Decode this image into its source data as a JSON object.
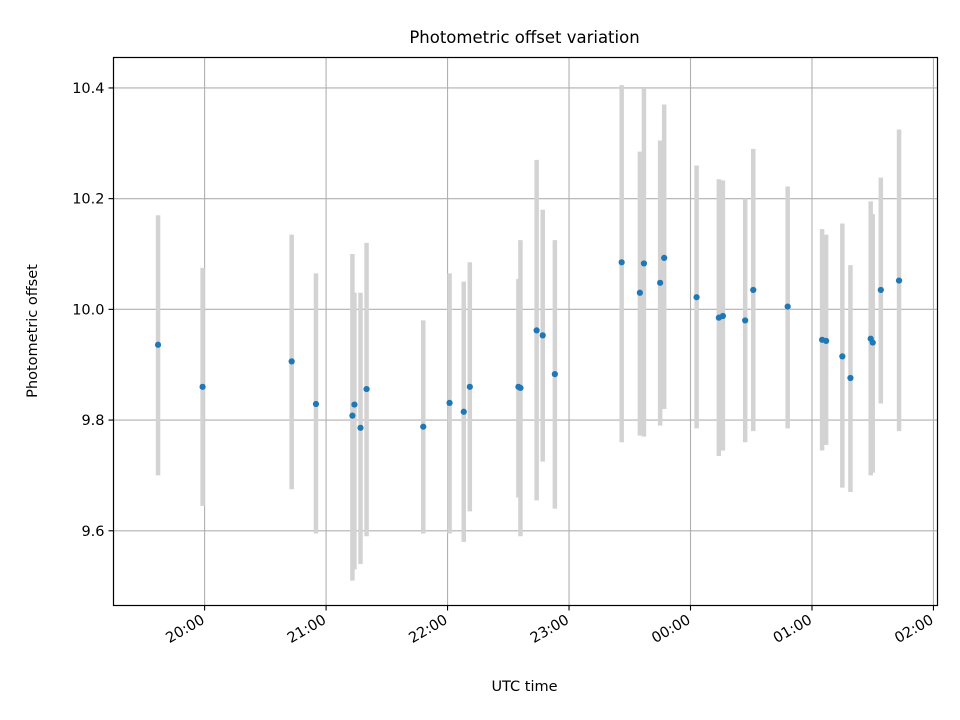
{
  "chart_data": {
    "type": "scatter",
    "title": "Photometric offset variation",
    "xlabel": "UTC time",
    "ylabel": "Photometric offset",
    "x_ticks": [
      "20:00",
      "21:00",
      "22:00",
      "23:00",
      "00:00",
      "01:00",
      "02:00"
    ],
    "y_ticks": [
      "9.6",
      "9.8",
      "10.0",
      "10.2",
      "10.4"
    ],
    "xlim": [
      "19:15",
      "02:02"
    ],
    "ylim": [
      9.465,
      10.455
    ],
    "grid": true,
    "x_tick_rotation_deg": 30,
    "point_color": "#1f77b4",
    "errorbar_color": "#d3d3d3",
    "points": [
      {
        "x": "19:37",
        "y": 9.936,
        "lo": 9.7,
        "hi": 10.17
      },
      {
        "x": "19:59",
        "y": 9.86,
        "lo": 9.645,
        "hi": 10.075
      },
      {
        "x": "20:43",
        "y": 9.906,
        "lo": 9.675,
        "hi": 10.135
      },
      {
        "x": "20:55",
        "y": 9.829,
        "lo": 9.595,
        "hi": 10.065
      },
      {
        "x": "21:13",
        "y": 9.808,
        "lo": 9.51,
        "hi": 10.1
      },
      {
        "x": "21:14",
        "y": 9.828,
        "lo": 9.53,
        "hi": 10.03
      },
      {
        "x": "21:17",
        "y": 9.786,
        "lo": 9.54,
        "hi": 10.03
      },
      {
        "x": "21:20",
        "y": 9.856,
        "lo": 9.59,
        "hi": 10.12
      },
      {
        "x": "21:48",
        "y": 9.788,
        "lo": 9.595,
        "hi": 9.98
      },
      {
        "x": "22:01",
        "y": 9.831,
        "lo": 9.595,
        "hi": 10.065
      },
      {
        "x": "22:08",
        "y": 9.815,
        "lo": 9.58,
        "hi": 10.05
      },
      {
        "x": "22:11",
        "y": 9.86,
        "lo": 9.635,
        "hi": 10.085
      },
      {
        "x": "22:35",
        "y": 9.86,
        "lo": 9.66,
        "hi": 10.055
      },
      {
        "x": "22:36",
        "y": 9.858,
        "lo": 9.59,
        "hi": 10.125
      },
      {
        "x": "22:44",
        "y": 9.962,
        "lo": 9.655,
        "hi": 10.27
      },
      {
        "x": "22:47",
        "y": 9.953,
        "lo": 9.725,
        "hi": 10.18
      },
      {
        "x": "22:53",
        "y": 9.883,
        "lo": 9.64,
        "hi": 10.125
      },
      {
        "x": "23:26",
        "y": 10.085,
        "lo": 9.76,
        "hi": 10.405
      },
      {
        "x": "23:35",
        "y": 10.03,
        "lo": 9.772,
        "hi": 10.285
      },
      {
        "x": "23:37",
        "y": 10.083,
        "lo": 9.77,
        "hi": 10.4
      },
      {
        "x": "23:45",
        "y": 10.048,
        "lo": 9.79,
        "hi": 10.305
      },
      {
        "x": "23:47",
        "y": 10.093,
        "lo": 9.82,
        "hi": 10.37
      },
      {
        "x": "00:03",
        "y": 10.022,
        "lo": 9.785,
        "hi": 10.26
      },
      {
        "x": "00:14",
        "y": 9.985,
        "lo": 9.735,
        "hi": 10.235
      },
      {
        "x": "00:16",
        "y": 9.988,
        "lo": 9.745,
        "hi": 10.233
      },
      {
        "x": "00:27",
        "y": 9.98,
        "lo": 9.76,
        "hi": 10.2
      },
      {
        "x": "00:31",
        "y": 10.035,
        "lo": 9.78,
        "hi": 10.29
      },
      {
        "x": "00:48",
        "y": 10.005,
        "lo": 9.785,
        "hi": 10.222
      },
      {
        "x": "01:05",
        "y": 9.945,
        "lo": 9.745,
        "hi": 10.145
      },
      {
        "x": "01:07",
        "y": 9.943,
        "lo": 9.755,
        "hi": 10.135
      },
      {
        "x": "01:15",
        "y": 9.915,
        "lo": 9.678,
        "hi": 10.155
      },
      {
        "x": "01:19",
        "y": 9.876,
        "lo": 9.67,
        "hi": 10.08
      },
      {
        "x": "01:29",
        "y": 9.947,
        "lo": 9.7,
        "hi": 10.195
      },
      {
        "x": "01:30",
        "y": 9.94,
        "lo": 9.705,
        "hi": 10.172
      },
      {
        "x": "01:34",
        "y": 10.035,
        "lo": 9.83,
        "hi": 10.238
      },
      {
        "x": "01:43",
        "y": 10.052,
        "lo": 9.78,
        "hi": 10.325
      }
    ]
  }
}
